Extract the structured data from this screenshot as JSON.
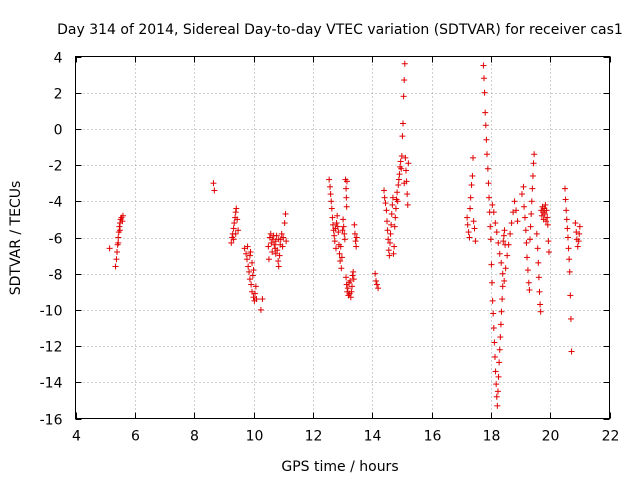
{
  "chart_data": {
    "type": "scatter",
    "title": "Day 314 of 2014, Sidereal Day-to-day VTEC variation (SDTVAR) for receiver cas1",
    "xlabel": "GPS time / hours",
    "ylabel": "SDTVAR / TECUs",
    "xlim": [
      4,
      22
    ],
    "ylim": [
      -16,
      4
    ],
    "xticks": [
      4,
      6,
      8,
      10,
      12,
      14,
      16,
      18,
      20,
      22
    ],
    "yticks": [
      -16,
      -14,
      -12,
      -10,
      -8,
      -6,
      -4,
      -2,
      0,
      2,
      4
    ],
    "grid": true,
    "marker": "+",
    "color": "#e00000",
    "series": [
      {
        "name": "SDTVAR",
        "points": [
          [
            5.15,
            -6.6
          ],
          [
            5.35,
            -7.6
          ],
          [
            5.38,
            -7.2
          ],
          [
            5.4,
            -6.8
          ],
          [
            5.42,
            -6.4
          ],
          [
            5.44,
            -6.0
          ],
          [
            5.46,
            -5.7
          ],
          [
            5.48,
            -5.4
          ],
          [
            5.5,
            -5.2
          ],
          [
            5.52,
            -5.0
          ],
          [
            5.55,
            -4.9
          ],
          [
            5.58,
            -5.1
          ],
          [
            5.6,
            -4.8
          ],
          [
            5.44,
            -6.3
          ],
          [
            5.5,
            -5.6
          ],
          [
            8.65,
            -3.0
          ],
          [
            8.68,
            -3.4
          ],
          [
            9.25,
            -6.3
          ],
          [
            9.28,
            -6.0
          ],
          [
            9.3,
            -5.8
          ],
          [
            9.33,
            -5.5
          ],
          [
            9.35,
            -5.2
          ],
          [
            9.38,
            -4.9
          ],
          [
            9.4,
            -4.6
          ],
          [
            9.42,
            -4.4
          ],
          [
            9.45,
            -5.0
          ],
          [
            9.48,
            -5.6
          ],
          [
            9.4,
            -5.8
          ],
          [
            9.33,
            -6.1
          ],
          [
            9.7,
            -6.6
          ],
          [
            9.75,
            -6.9
          ],
          [
            9.78,
            -7.2
          ],
          [
            9.8,
            -6.5
          ],
          [
            9.82,
            -7.6
          ],
          [
            9.85,
            -7.9
          ],
          [
            9.88,
            -8.3
          ],
          [
            9.9,
            -6.8
          ],
          [
            9.92,
            -8.6
          ],
          [
            9.95,
            -9.0
          ],
          [
            9.98,
            -8.1
          ],
          [
            10.0,
            -9.3
          ],
          [
            10.03,
            -9.5
          ],
          [
            10.05,
            -9.1
          ],
          [
            10.08,
            -8.7
          ],
          [
            10.1,
            -9.4
          ],
          [
            9.88,
            -7.0
          ],
          [
            9.95,
            -7.4
          ],
          [
            10.0,
            -7.8
          ],
          [
            10.3,
            -9.4
          ],
          [
            10.25,
            -10.0
          ],
          [
            10.5,
            -6.5
          ],
          [
            10.52,
            -7.2
          ],
          [
            10.55,
            -6.0
          ],
          [
            10.58,
            -5.8
          ],
          [
            10.6,
            -6.3
          ],
          [
            10.63,
            -6.8
          ],
          [
            10.65,
            -6.1
          ],
          [
            10.68,
            -5.9
          ],
          [
            10.7,
            -6.4
          ],
          [
            10.73,
            -6.6
          ],
          [
            10.75,
            -6.2
          ],
          [
            10.78,
            -5.9
          ],
          [
            10.8,
            -6.7
          ],
          [
            10.83,
            -7.3
          ],
          [
            10.85,
            -7.6
          ],
          [
            10.88,
            -7.0
          ],
          [
            10.9,
            -6.4
          ],
          [
            10.92,
            -6.1
          ],
          [
            10.95,
            -5.8
          ],
          [
            10.98,
            -6.5
          ],
          [
            11.0,
            -6.0
          ],
          [
            11.05,
            -5.2
          ],
          [
            11.08,
            -4.7
          ],
          [
            11.1,
            -6.2
          ],
          [
            10.85,
            -6.1
          ],
          [
            10.75,
            -6.9
          ],
          [
            12.55,
            -2.8
          ],
          [
            12.58,
            -3.2
          ],
          [
            12.6,
            -3.6
          ],
          [
            12.62,
            -4.0
          ],
          [
            12.64,
            -4.4
          ],
          [
            12.66,
            -4.9
          ],
          [
            12.68,
            -5.3
          ],
          [
            12.7,
            -5.6
          ],
          [
            12.72,
            -5.9
          ],
          [
            12.74,
            -6.2
          ],
          [
            12.76,
            -5.5
          ],
          [
            12.78,
            -6.6
          ],
          [
            12.8,
            -5.2
          ],
          [
            12.82,
            -4.8
          ],
          [
            12.84,
            -5.4
          ],
          [
            12.86,
            -5.7
          ],
          [
            12.88,
            -6.4
          ],
          [
            12.9,
            -6.9
          ],
          [
            12.92,
            -7.3
          ],
          [
            12.94,
            -6.5
          ],
          [
            12.96,
            -7.7
          ],
          [
            12.98,
            -7.1
          ],
          [
            13.0,
            -5.6
          ],
          [
            13.02,
            -5.0
          ],
          [
            13.04,
            -5.4
          ],
          [
            13.06,
            -5.8
          ],
          [
            13.08,
            -6.1
          ],
          [
            13.1,
            -2.8
          ],
          [
            13.12,
            -3.3
          ],
          [
            13.13,
            -3.8
          ],
          [
            13.14,
            -4.3
          ],
          [
            13.15,
            -2.9
          ],
          [
            13.12,
            -8.2
          ],
          [
            13.14,
            -8.6
          ],
          [
            13.16,
            -9.0
          ],
          [
            13.18,
            -8.8
          ],
          [
            13.2,
            -9.2
          ],
          [
            13.22,
            -8.5
          ],
          [
            13.24,
            -9.1
          ],
          [
            13.26,
            -8.4
          ],
          [
            13.28,
            -9.3
          ],
          [
            13.3,
            -9.0
          ],
          [
            13.32,
            -8.7
          ],
          [
            13.34,
            -8.1
          ],
          [
            13.36,
            -7.9
          ],
          [
            13.38,
            -8.3
          ],
          [
            13.4,
            -5.3
          ],
          [
            13.42,
            -5.8
          ],
          [
            13.44,
            -6.2
          ],
          [
            13.46,
            -6.5
          ],
          [
            13.48,
            -6.0
          ],
          [
            14.1,
            -8.0
          ],
          [
            14.13,
            -8.4
          ],
          [
            14.16,
            -8.6
          ],
          [
            14.2,
            -8.8
          ],
          [
            14.4,
            -3.4
          ],
          [
            14.42,
            -3.8
          ],
          [
            14.45,
            -4.1
          ],
          [
            14.48,
            -4.5
          ],
          [
            14.5,
            -5.1
          ],
          [
            14.52,
            -5.6
          ],
          [
            14.54,
            -6.1
          ],
          [
            14.56,
            -6.7
          ],
          [
            14.58,
            -7.0
          ],
          [
            14.6,
            -6.3
          ],
          [
            14.62,
            -5.8
          ],
          [
            14.64,
            -5.3
          ],
          [
            14.66,
            -4.7
          ],
          [
            14.68,
            -4.2
          ],
          [
            14.7,
            -3.8
          ],
          [
            14.72,
            -6.9
          ],
          [
            14.74,
            -6.5
          ],
          [
            14.76,
            -5.4
          ],
          [
            14.78,
            -4.9
          ],
          [
            14.8,
            -4.4
          ],
          [
            14.82,
            -3.9
          ],
          [
            14.84,
            -3.5
          ],
          [
            14.86,
            -4.0
          ],
          [
            14.88,
            -3.1
          ],
          [
            14.9,
            -2.8
          ],
          [
            14.92,
            -2.5
          ],
          [
            14.94,
            -2.1
          ],
          [
            14.96,
            -1.8
          ],
          [
            14.98,
            -2.2
          ],
          [
            15.0,
            -1.5
          ],
          [
            15.02,
            -0.4
          ],
          [
            15.04,
            0.3
          ],
          [
            15.06,
            1.8
          ],
          [
            15.08,
            2.7
          ],
          [
            15.1,
            3.6
          ],
          [
            15.12,
            -1.6
          ],
          [
            15.14,
            -2.3
          ],
          [
            15.16,
            -2.9
          ],
          [
            15.18,
            -3.6
          ],
          [
            15.2,
            -4.2
          ],
          [
            15.22,
            -1.9
          ],
          [
            15.08,
            -3.0
          ],
          [
            17.2,
            -4.9
          ],
          [
            17.22,
            -5.3
          ],
          [
            17.25,
            -5.7
          ],
          [
            17.28,
            -6.0
          ],
          [
            17.3,
            -4.4
          ],
          [
            17.32,
            -3.8
          ],
          [
            17.35,
            -3.1
          ],
          [
            17.38,
            -2.6
          ],
          [
            17.4,
            -1.6
          ],
          [
            17.42,
            -5.1
          ],
          [
            17.45,
            -5.5
          ],
          [
            17.48,
            -6.2
          ],
          [
            17.75,
            3.5
          ],
          [
            17.77,
            2.8
          ],
          [
            17.79,
            2.0
          ],
          [
            17.81,
            0.9
          ],
          [
            17.83,
            0.2
          ],
          [
            17.85,
            -0.6
          ],
          [
            17.87,
            -1.4
          ],
          [
            17.9,
            -2.2
          ],
          [
            17.92,
            -3.0
          ],
          [
            17.94,
            -3.8
          ],
          [
            17.96,
            -4.6
          ],
          [
            17.98,
            -5.4
          ],
          [
            18.0,
            -6.1
          ],
          [
            18.02,
            -7.5
          ],
          [
            18.04,
            -8.5
          ],
          [
            18.06,
            -9.5
          ],
          [
            18.08,
            -10.2
          ],
          [
            18.1,
            -11.0
          ],
          [
            18.12,
            -11.8
          ],
          [
            18.14,
            -12.6
          ],
          [
            18.16,
            -13.4
          ],
          [
            18.18,
            -14.1
          ],
          [
            18.2,
            -14.8
          ],
          [
            18.22,
            -15.3
          ],
          [
            18.24,
            -14.5
          ],
          [
            18.26,
            -13.7
          ],
          [
            18.28,
            -12.9
          ],
          [
            18.3,
            -12.2
          ],
          [
            18.32,
            -11.5
          ],
          [
            18.34,
            -10.8
          ],
          [
            18.36,
            -10.1
          ],
          [
            18.38,
            -9.4
          ],
          [
            18.4,
            -8.7
          ],
          [
            18.42,
            -6.2
          ],
          [
            18.44,
            -5.9
          ],
          [
            18.46,
            -5.6
          ],
          [
            18.48,
            -6.4
          ],
          [
            18.05,
            -4.2
          ],
          [
            18.1,
            -4.6
          ],
          [
            18.15,
            -5.2
          ],
          [
            18.2,
            -5.7
          ],
          [
            18.25,
            -6.3
          ],
          [
            18.3,
            -6.9
          ],
          [
            18.35,
            -7.4
          ],
          [
            18.4,
            -8.0
          ],
          [
            18.45,
            -8.4
          ],
          [
            18.5,
            -7.7
          ],
          [
            18.55,
            -7.0
          ],
          [
            18.6,
            -6.4
          ],
          [
            18.65,
            -5.8
          ],
          [
            18.7,
            -5.2
          ],
          [
            18.75,
            -4.6
          ],
          [
            18.8,
            -4.0
          ],
          [
            18.85,
            -4.5
          ],
          [
            18.9,
            -5.1
          ],
          [
            19.05,
            -3.6
          ],
          [
            19.1,
            -3.2
          ],
          [
            19.12,
            -4.3
          ],
          [
            19.15,
            -4.9
          ],
          [
            19.18,
            -5.6
          ],
          [
            19.2,
            -6.3
          ],
          [
            19.22,
            -7.1
          ],
          [
            19.25,
            -7.8
          ],
          [
            19.28,
            -8.5
          ],
          [
            19.3,
            -8.9
          ],
          [
            19.32,
            -6.1
          ],
          [
            19.34,
            -5.4
          ],
          [
            19.36,
            -4.7
          ],
          [
            19.38,
            -4.0
          ],
          [
            19.4,
            -3.3
          ],
          [
            19.42,
            -2.6
          ],
          [
            19.44,
            -1.9
          ],
          [
            19.46,
            -1.4
          ],
          [
            19.55,
            -5.8
          ],
          [
            19.58,
            -6.6
          ],
          [
            19.6,
            -7.4
          ],
          [
            19.62,
            -8.2
          ],
          [
            19.64,
            -9.0
          ],
          [
            19.66,
            -9.7
          ],
          [
            19.68,
            -10.1
          ],
          [
            19.7,
            -4.5
          ],
          [
            19.72,
            -4.8
          ],
          [
            19.74,
            -4.3
          ],
          [
            19.76,
            -4.6
          ],
          [
            19.78,
            -5.0
          ],
          [
            19.8,
            -4.4
          ],
          [
            19.82,
            -4.7
          ],
          [
            19.84,
            -4.2
          ],
          [
            19.86,
            -5.1
          ],
          [
            19.88,
            -4.5
          ],
          [
            19.9,
            -4.9
          ],
          [
            19.92,
            -5.3
          ],
          [
            19.94,
            -6.2
          ],
          [
            19.96,
            -6.8
          ],
          [
            20.5,
            -3.3
          ],
          [
            20.52,
            -3.9
          ],
          [
            20.54,
            -4.5
          ],
          [
            20.56,
            -5.0
          ],
          [
            20.58,
            -5.5
          ],
          [
            20.6,
            -6.0
          ],
          [
            20.62,
            -6.6
          ],
          [
            20.64,
            -7.2
          ],
          [
            20.66,
            -7.9
          ],
          [
            20.68,
            -9.2
          ],
          [
            20.7,
            -10.5
          ],
          [
            20.72,
            -12.3
          ],
          [
            20.85,
            -5.2
          ],
          [
            20.88,
            -5.7
          ],
          [
            20.9,
            -6.1
          ],
          [
            20.93,
            -6.5
          ],
          [
            20.96,
            -6.2
          ],
          [
            20.98,
            -5.8
          ],
          [
            21.0,
            -5.4
          ]
        ]
      }
    ]
  }
}
